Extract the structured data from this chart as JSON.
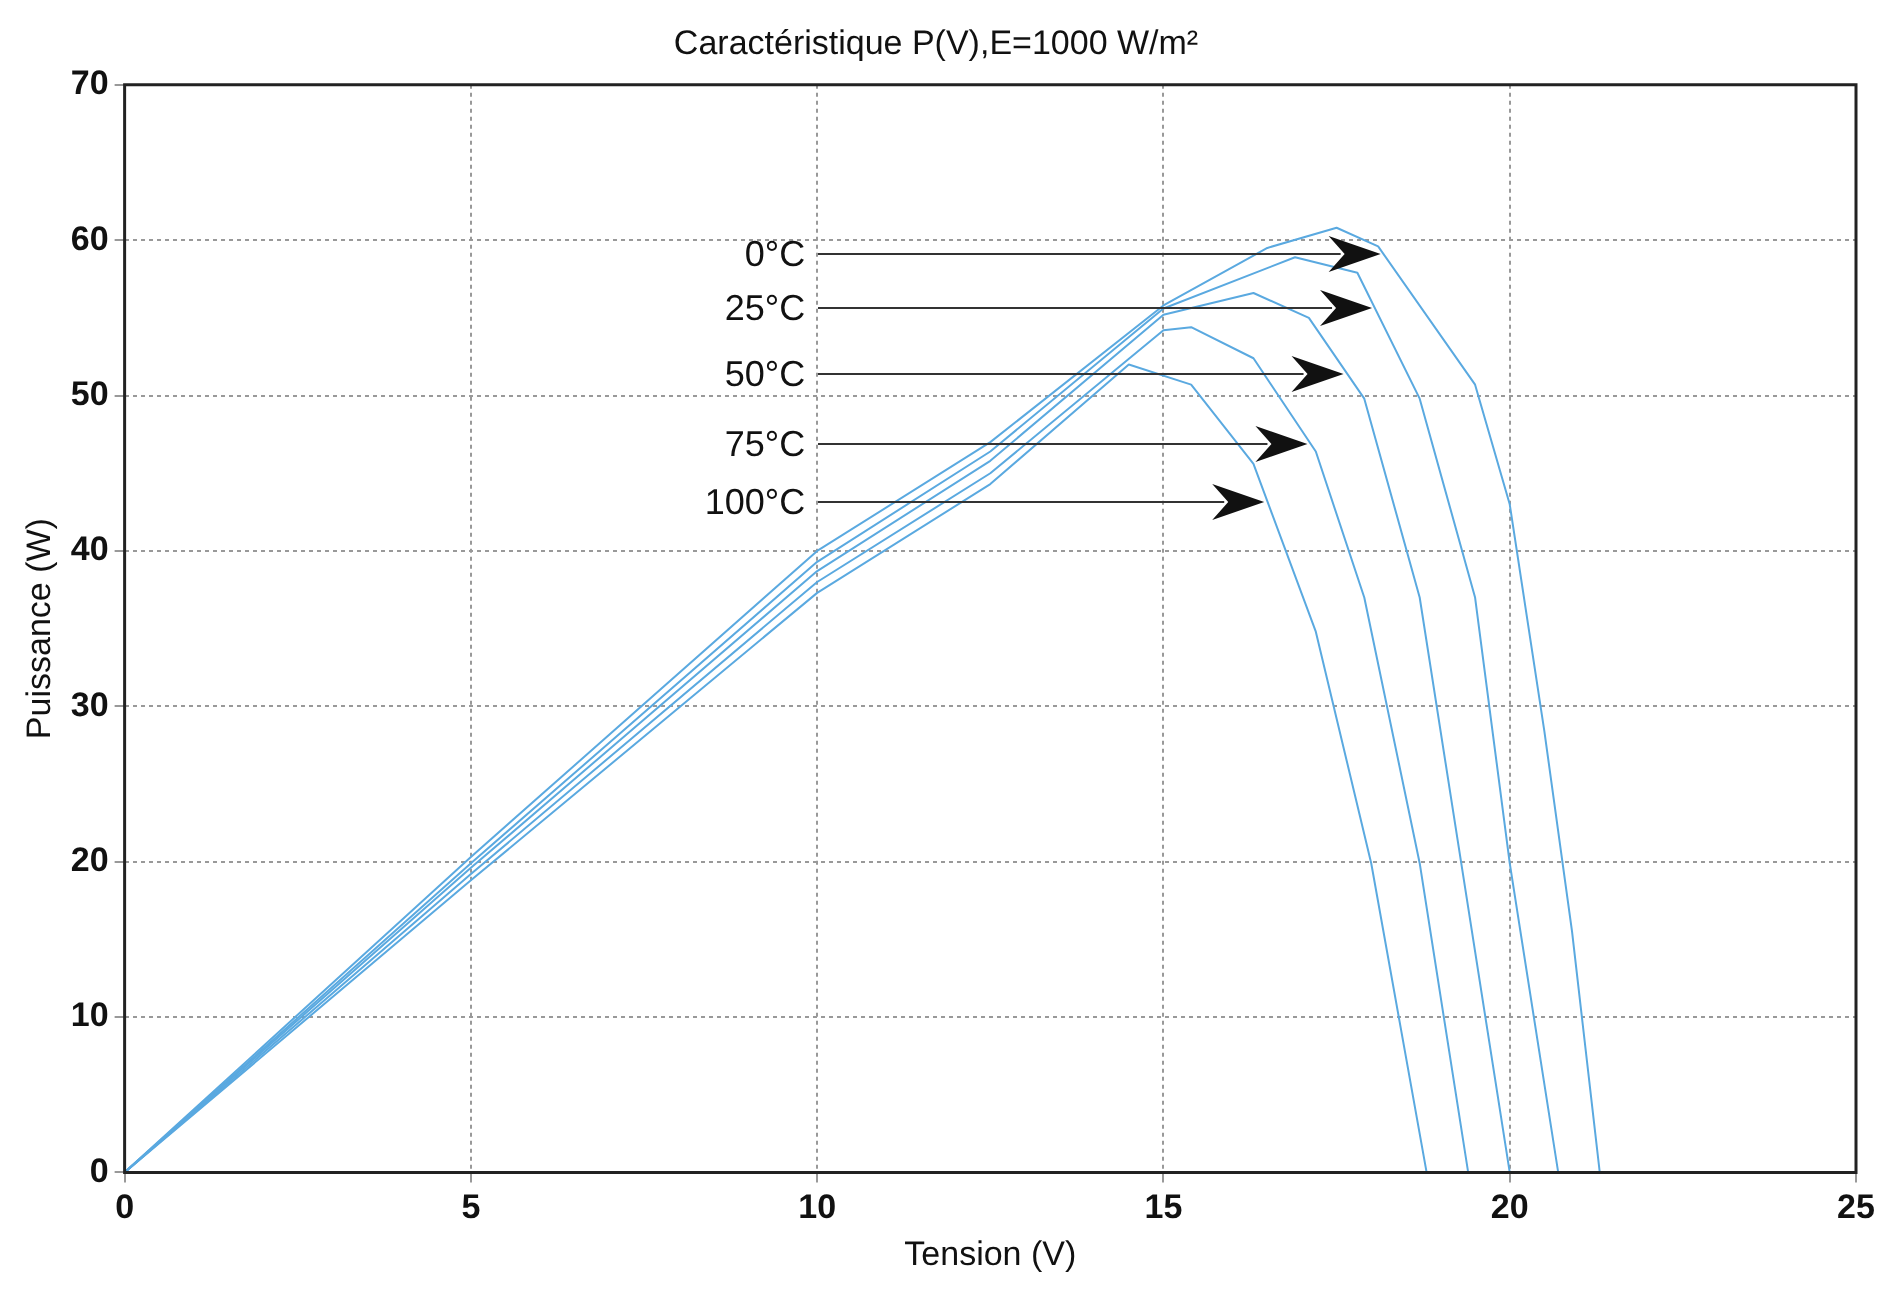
{
  "chart_data": {
    "type": "line",
    "title": "Caractéristique P(V),E=1000 W/m²",
    "xlabel": "Tension (V)",
    "ylabel": "Puissance (W)",
    "xlim": [
      0,
      25
    ],
    "xticks": [
      0,
      5,
      10,
      15,
      20,
      25
    ],
    "ylim": [
      0,
      70
    ],
    "yticks": [
      0,
      10,
      20,
      30,
      40,
      50,
      60,
      70
    ],
    "grid": true,
    "legend": false,
    "marker": "none",
    "line_style": "solid",
    "series": [
      {
        "color": "#5aa9e0",
        "x": [
          0,
          5,
          10,
          12.5,
          15,
          16.5,
          17.5,
          18.1,
          19.5,
          20,
          20.5,
          20.9,
          21.3
        ],
        "values": [
          0,
          20.3,
          40,
          47,
          55.8,
          59.5,
          60.8,
          59.6,
          50.7,
          43,
          28.4,
          15.5,
          0
        ]
      },
      {
        "color": "#5aa9e0",
        "x": [
          0,
          5,
          10,
          12.5,
          15,
          16.9,
          17.8,
          18.7,
          19.5,
          20,
          20.7
        ],
        "values": [
          0,
          19.9,
          39.3,
          46.4,
          55.6,
          58.9,
          57.9,
          49.8,
          37,
          19.9,
          0
        ]
      },
      {
        "color": "#5aa9e0",
        "x": [
          0,
          5,
          10,
          12.5,
          15,
          16.3,
          17.1,
          17.9,
          18.7,
          19.3,
          20
        ],
        "values": [
          0,
          19.6,
          38.7,
          45.8,
          55.2,
          56.6,
          55,
          49.8,
          37,
          19.9,
          0
        ]
      },
      {
        "color": "#5aa9e0",
        "x": [
          0,
          5,
          10,
          12.5,
          15,
          15.4,
          16.3,
          17.2,
          17.9,
          18.7,
          19.4
        ],
        "values": [
          0,
          19.2,
          38,
          45,
          54.2,
          54.4,
          52.4,
          46.4,
          37,
          19.9,
          0
        ]
      },
      {
        "color": "#5aa9e0",
        "x": [
          0,
          5,
          10,
          12.5,
          14.5,
          15.4,
          16.3,
          17.2,
          18,
          18.8
        ],
        "values": [
          0,
          18.8,
          37.3,
          44.3,
          52,
          50.7,
          45.6,
          34.8,
          19.9,
          0
        ]
      }
    ],
    "annotations": [
      "0°C",
      "25°C",
      "50°C",
      "75°C",
      "100°C"
    ]
  }
}
